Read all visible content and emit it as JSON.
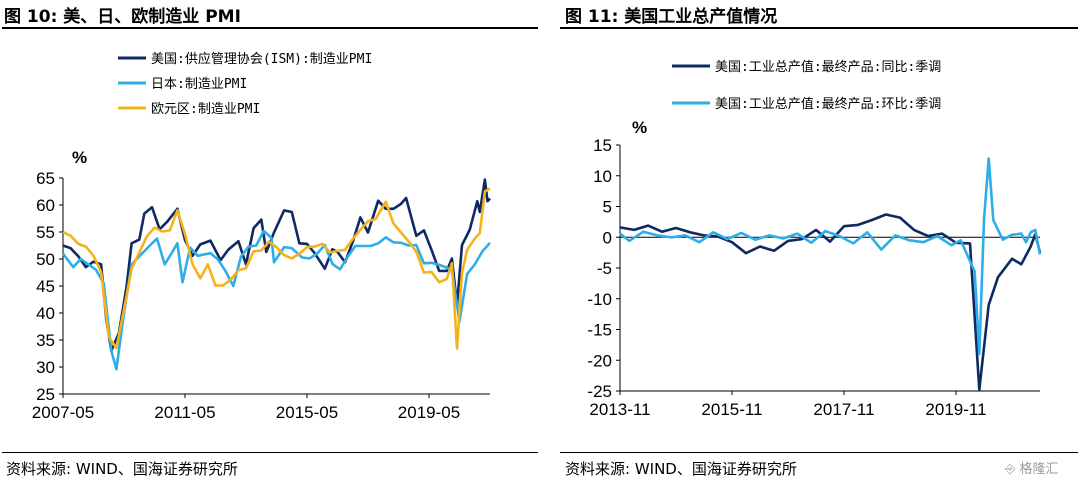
{
  "left_panel": {
    "title": "图 10:  美、日、欧制造业 PMI",
    "source": "资料来源: WIND、国海证券研究所"
  },
  "right_panel": {
    "title": "图 11:  美国工业总产值情况",
    "source": "资料来源: WIND、国海证券研究所"
  },
  "watermark": "格隆汇",
  "chart_data": [
    {
      "type": "line",
      "ylabel": "%",
      "ylim": [
        25,
        65
      ],
      "yticks": [
        25,
        30,
        35,
        40,
        45,
        50,
        55,
        60,
        65
      ],
      "xlim": [
        "2007-05",
        "2021-05"
      ],
      "xticks": [
        "2007-05",
        "2011-05",
        "2015-05",
        "2019-05"
      ],
      "legend_position": "top-left",
      "series": [
        {
          "name": "美国:供应管理协会(ISM):制造业PMI",
          "color": "#0f2a63",
          "points": [
            [
              "2007-05",
              52.5
            ],
            [
              "2007-08",
              52.0
            ],
            [
              "2007-11",
              50.5
            ],
            [
              "2008-02",
              48.5
            ],
            [
              "2008-05",
              49.5
            ],
            [
              "2008-08",
              49.0
            ],
            [
              "2008-10",
              38.9
            ],
            [
              "2008-12",
              33.0
            ],
            [
              "2009-03",
              36.3
            ],
            [
              "2009-06",
              44.8
            ],
            [
              "2009-08",
              52.9
            ],
            [
              "2009-11",
              53.6
            ],
            [
              "2010-01",
              58.4
            ],
            [
              "2010-04",
              59.6
            ],
            [
              "2010-07",
              55.5
            ],
            [
              "2010-10",
              56.9
            ],
            [
              "2011-02",
              59.3
            ],
            [
              "2011-05",
              53.5
            ],
            [
              "2011-08",
              50.6
            ],
            [
              "2011-11",
              52.7
            ],
            [
              "2012-03",
              53.4
            ],
            [
              "2012-07",
              49.8
            ],
            [
              "2012-10",
              51.7
            ],
            [
              "2013-02",
              53.3
            ],
            [
              "2013-05",
              49.0
            ],
            [
              "2013-08",
              55.7
            ],
            [
              "2013-11",
              57.3
            ],
            [
              "2014-01",
              51.3
            ],
            [
              "2014-04",
              54.9
            ],
            [
              "2014-08",
              59.0
            ],
            [
              "2014-11",
              58.7
            ],
            [
              "2015-02",
              52.9
            ],
            [
              "2015-05",
              52.8
            ],
            [
              "2015-08",
              51.1
            ],
            [
              "2015-12",
              48.2
            ],
            [
              "2016-03",
              51.8
            ],
            [
              "2016-05",
              51.3
            ],
            [
              "2016-08",
              49.4
            ],
            [
              "2016-11",
              53.2
            ],
            [
              "2017-02",
              57.7
            ],
            [
              "2017-05",
              54.9
            ],
            [
              "2017-09",
              60.8
            ],
            [
              "2017-12",
              59.3
            ],
            [
              "2018-03",
              59.3
            ],
            [
              "2018-06",
              60.2
            ],
            [
              "2018-08",
              61.3
            ],
            [
              "2018-12",
              54.3
            ],
            [
              "2019-03",
              55.3
            ],
            [
              "2019-06",
              51.7
            ],
            [
              "2019-09",
              47.8
            ],
            [
              "2019-12",
              47.8
            ],
            [
              "2020-02",
              50.1
            ],
            [
              "2020-04",
              41.5
            ],
            [
              "2020-06",
              52.6
            ],
            [
              "2020-09",
              55.4
            ],
            [
              "2020-12",
              60.7
            ],
            [
              "2021-01",
              58.7
            ],
            [
              "2021-03",
              64.7
            ],
            [
              "2021-04",
              60.7
            ],
            [
              "2021-05",
              61.2
            ]
          ]
        },
        {
          "name": "日本:制造业PMI",
          "color": "#2eaee8",
          "points": [
            [
              "2007-05",
              51.0
            ],
            [
              "2007-09",
              48.5
            ],
            [
              "2007-12",
              50.0
            ],
            [
              "2008-03",
              49.0
            ],
            [
              "2008-06",
              48.0
            ],
            [
              "2008-09",
              45.5
            ],
            [
              "2008-12",
              33.0
            ],
            [
              "2009-02",
              29.6
            ],
            [
              "2009-05",
              40.0
            ],
            [
              "2009-08",
              49.0
            ],
            [
              "2009-11",
              50.5
            ],
            [
              "2010-03",
              52.4
            ],
            [
              "2010-06",
              53.8
            ],
            [
              "2010-09",
              49.0
            ],
            [
              "2010-12",
              51.3
            ],
            [
              "2011-02",
              52.9
            ],
            [
              "2011-04",
              45.7
            ],
            [
              "2011-07",
              52.1
            ],
            [
              "2011-10",
              50.6
            ],
            [
              "2012-03",
              51.1
            ],
            [
              "2012-06",
              49.9
            ],
            [
              "2012-09",
              47.7
            ],
            [
              "2012-12",
              45.0
            ],
            [
              "2013-03",
              50.4
            ],
            [
              "2013-06",
              52.3
            ],
            [
              "2013-09",
              52.5
            ],
            [
              "2013-12",
              55.2
            ],
            [
              "2014-03",
              53.9
            ],
            [
              "2014-04",
              49.4
            ],
            [
              "2014-08",
              52.2
            ],
            [
              "2014-11",
              52.0
            ],
            [
              "2015-03",
              50.3
            ],
            [
              "2015-06",
              50.1
            ],
            [
              "2015-09",
              51.0
            ],
            [
              "2015-12",
              52.6
            ],
            [
              "2016-03",
              49.1
            ],
            [
              "2016-06",
              48.1
            ],
            [
              "2016-09",
              50.4
            ],
            [
              "2016-12",
              52.4
            ],
            [
              "2017-03",
              52.4
            ],
            [
              "2017-06",
              52.4
            ],
            [
              "2017-09",
              52.9
            ],
            [
              "2017-12",
              54.0
            ],
            [
              "2018-03",
              53.1
            ],
            [
              "2018-06",
              53.0
            ],
            [
              "2018-09",
              52.5
            ],
            [
              "2018-12",
              52.6
            ],
            [
              "2019-03",
              49.2
            ],
            [
              "2019-06",
              49.3
            ],
            [
              "2019-09",
              48.9
            ],
            [
              "2019-12",
              48.4
            ],
            [
              "2020-02",
              47.8
            ],
            [
              "2020-05",
              38.4
            ],
            [
              "2020-08",
              47.2
            ],
            [
              "2020-11",
              49.0
            ],
            [
              "2021-02",
              51.4
            ],
            [
              "2021-05",
              53.0
            ]
          ]
        },
        {
          "name": "欧元区:制造业PMI",
          "color": "#f5b21a",
          "points": [
            [
              "2007-05",
              55.0
            ],
            [
              "2007-08",
              54.3
            ],
            [
              "2007-11",
              52.8
            ],
            [
              "2008-02",
              52.3
            ],
            [
              "2008-05",
              50.6
            ],
            [
              "2008-08",
              47.6
            ],
            [
              "2008-11",
              35.6
            ],
            [
              "2009-02",
              33.5
            ],
            [
              "2009-05",
              40.7
            ],
            [
              "2009-08",
              48.2
            ],
            [
              "2009-11",
              51.2
            ],
            [
              "2010-02",
              54.2
            ],
            [
              "2010-05",
              55.8
            ],
            [
              "2010-08",
              55.1
            ],
            [
              "2010-11",
              55.3
            ],
            [
              "2011-02",
              59.0
            ],
            [
              "2011-05",
              54.6
            ],
            [
              "2011-08",
              49.0
            ],
            [
              "2011-11",
              46.4
            ],
            [
              "2012-02",
              49.0
            ],
            [
              "2012-05",
              45.1
            ],
            [
              "2012-08",
              45.1
            ],
            [
              "2012-11",
              46.2
            ],
            [
              "2013-02",
              47.9
            ],
            [
              "2013-05",
              48.3
            ],
            [
              "2013-08",
              51.4
            ],
            [
              "2013-11",
              51.6
            ],
            [
              "2014-02",
              53.2
            ],
            [
              "2014-05",
              52.2
            ],
            [
              "2014-08",
              50.7
            ],
            [
              "2014-11",
              50.1
            ],
            [
              "2015-02",
              51.0
            ],
            [
              "2015-05",
              52.2
            ],
            [
              "2015-08",
              52.3
            ],
            [
              "2015-11",
              52.8
            ],
            [
              "2016-02",
              51.2
            ],
            [
              "2016-05",
              51.5
            ],
            [
              "2016-08",
              51.7
            ],
            [
              "2016-11",
              53.7
            ],
            [
              "2017-02",
              55.4
            ],
            [
              "2017-05",
              57.0
            ],
            [
              "2017-08",
              57.4
            ],
            [
              "2017-12",
              60.6
            ],
            [
              "2018-03",
              56.6
            ],
            [
              "2018-06",
              54.9
            ],
            [
              "2018-09",
              53.2
            ],
            [
              "2018-12",
              51.4
            ],
            [
              "2019-03",
              47.5
            ],
            [
              "2019-06",
              47.6
            ],
            [
              "2019-09",
              45.7
            ],
            [
              "2019-12",
              46.3
            ],
            [
              "2020-02",
              49.2
            ],
            [
              "2020-04",
              33.4
            ],
            [
              "2020-06",
              47.4
            ],
            [
              "2020-08",
              51.7
            ],
            [
              "2020-11",
              53.8
            ],
            [
              "2021-01",
              54.8
            ],
            [
              "2021-03",
              62.5
            ],
            [
              "2021-05",
              63.1
            ]
          ]
        }
      ]
    },
    {
      "type": "line",
      "ylabel": "%",
      "ylim": [
        -25,
        15
      ],
      "yticks": [
        -25,
        -20,
        -15,
        -10,
        -5,
        0,
        5,
        10,
        15
      ],
      "xlim": [
        "2013-11",
        "2021-05"
      ],
      "xticks": [
        "2013-11",
        "2015-11",
        "2017-11",
        "2019-11"
      ],
      "legend_position": "top-left",
      "series": [
        {
          "name": "美国:工业总产值:最终产品:同比:季调",
          "color": "#0f2a63",
          "points": [
            [
              "2013-11",
              1.6
            ],
            [
              "2014-02",
              1.2
            ],
            [
              "2014-05",
              1.9
            ],
            [
              "2014-08",
              0.9
            ],
            [
              "2014-11",
              1.5
            ],
            [
              "2015-02",
              0.8
            ],
            [
              "2015-05",
              0.3
            ],
            [
              "2015-08",
              0.1
            ],
            [
              "2015-11",
              -0.8
            ],
            [
              "2016-02",
              -2.6
            ],
            [
              "2016-05",
              -1.5
            ],
            [
              "2016-08",
              -2.2
            ],
            [
              "2016-11",
              -0.6
            ],
            [
              "2017-02",
              -0.3
            ],
            [
              "2017-05",
              1.2
            ],
            [
              "2017-08",
              -0.7
            ],
            [
              "2017-11",
              1.8
            ],
            [
              "2018-02",
              2.0
            ],
            [
              "2018-05",
              2.8
            ],
            [
              "2018-08",
              3.7
            ],
            [
              "2018-11",
              3.2
            ],
            [
              "2019-02",
              1.2
            ],
            [
              "2019-05",
              0.2
            ],
            [
              "2019-08",
              0.6
            ],
            [
              "2019-11",
              -0.9
            ],
            [
              "2020-02",
              -1.0
            ],
            [
              "2020-04",
              -24.8
            ],
            [
              "2020-06",
              -11.0
            ],
            [
              "2020-08",
              -6.5
            ],
            [
              "2020-11",
              -3.5
            ],
            [
              "2021-01",
              -4.4
            ],
            [
              "2021-03",
              -1.5
            ],
            [
              "2021-04",
              0.5
            ],
            [
              "2021-05",
              -2.5
            ]
          ]
        },
        {
          "name": "美国:工业总产值:最终产品:环比:季调",
          "color": "#2eaee8",
          "points": [
            [
              "2013-11",
              0.6
            ],
            [
              "2014-01",
              -0.6
            ],
            [
              "2014-04",
              0.9
            ],
            [
              "2014-07",
              0.3
            ],
            [
              "2014-10",
              0.0
            ],
            [
              "2015-01",
              0.3
            ],
            [
              "2015-04",
              -0.8
            ],
            [
              "2015-07",
              0.8
            ],
            [
              "2015-10",
              -0.3
            ],
            [
              "2016-01",
              0.7
            ],
            [
              "2016-04",
              -0.4
            ],
            [
              "2016-07",
              0.3
            ],
            [
              "2016-10",
              -0.2
            ],
            [
              "2017-01",
              0.6
            ],
            [
              "2017-04",
              -0.9
            ],
            [
              "2017-07",
              1.0
            ],
            [
              "2017-10",
              0.2
            ],
            [
              "2018-01",
              -1.0
            ],
            [
              "2018-04",
              0.8
            ],
            [
              "2018-07",
              -2.0
            ],
            [
              "2018-10",
              0.3
            ],
            [
              "2019-01",
              -0.5
            ],
            [
              "2019-04",
              -0.8
            ],
            [
              "2019-07",
              0.2
            ],
            [
              "2019-10",
              -1.3
            ],
            [
              "2019-12",
              -0.5
            ],
            [
              "2020-03",
              -5.6
            ],
            [
              "2020-04",
              -19.0
            ],
            [
              "2020-05",
              2.8
            ],
            [
              "2020-06",
              12.8
            ],
            [
              "2020-07",
              2.8
            ],
            [
              "2020-09",
              -0.4
            ],
            [
              "2020-11",
              0.4
            ],
            [
              "2021-01",
              0.6
            ],
            [
              "2021-02",
              -0.8
            ],
            [
              "2021-03",
              0.8
            ],
            [
              "2021-04",
              1.2
            ],
            [
              "2021-05",
              -2.8
            ]
          ]
        }
      ]
    }
  ]
}
